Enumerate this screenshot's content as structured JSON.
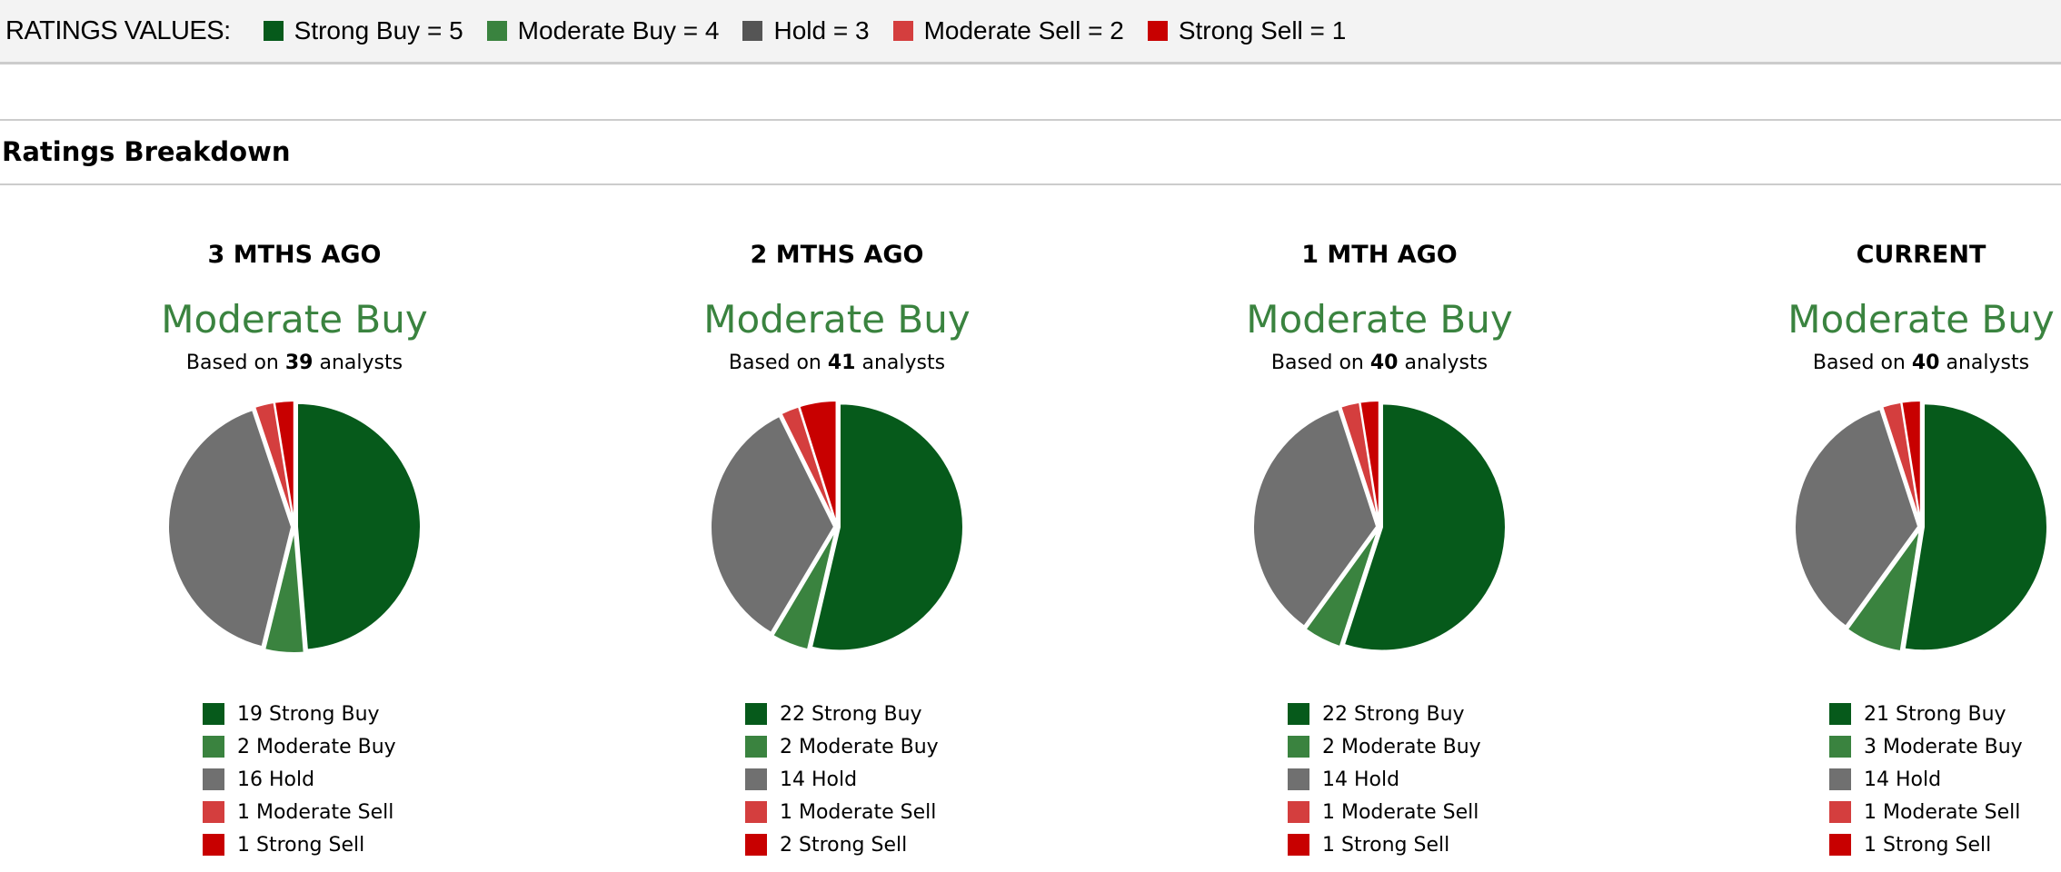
{
  "ratings_values": {
    "label": "RATINGS VALUES:",
    "items": [
      {
        "text": "Strong Buy = 5",
        "color": "#065a1b"
      },
      {
        "text": "Moderate Buy = 4",
        "color": "#3a833f"
      },
      {
        "text": "Hold = 3",
        "color": "#555555"
      },
      {
        "text": "Moderate Sell = 2",
        "color": "#d43e3e"
      },
      {
        "text": "Strong Sell = 1",
        "color": "#c80000"
      }
    ]
  },
  "section_title": "Ratings Breakdown",
  "chart_data": [
    {
      "type": "pie",
      "title": "3 MTHS AGO",
      "consensus": "Moderate Buy",
      "based_prefix": "Based on",
      "analysts": "39",
      "based_suffix": "analysts",
      "categories": [
        "Strong Buy",
        "Moderate Buy",
        "Hold",
        "Moderate Sell",
        "Strong Sell"
      ],
      "values": [
        19,
        2,
        16,
        1,
        1
      ],
      "legend": [
        "19 Strong Buy",
        "2 Moderate Buy",
        "16 Hold",
        "1 Moderate Sell",
        "1 Strong Sell"
      ]
    },
    {
      "type": "pie",
      "title": "2 MTHS AGO",
      "consensus": "Moderate Buy",
      "based_prefix": "Based on",
      "analysts": "41",
      "based_suffix": "analysts",
      "categories": [
        "Strong Buy",
        "Moderate Buy",
        "Hold",
        "Moderate Sell",
        "Strong Sell"
      ],
      "values": [
        22,
        2,
        14,
        1,
        2
      ],
      "legend": [
        "22 Strong Buy",
        "2 Moderate Buy",
        "14 Hold",
        "1 Moderate Sell",
        "2 Strong Sell"
      ]
    },
    {
      "type": "pie",
      "title": "1 MTH AGO",
      "consensus": "Moderate Buy",
      "based_prefix": "Based on",
      "analysts": "40",
      "based_suffix": "analysts",
      "categories": [
        "Strong Buy",
        "Moderate Buy",
        "Hold",
        "Moderate Sell",
        "Strong Sell"
      ],
      "values": [
        22,
        2,
        14,
        1,
        1
      ],
      "legend": [
        "22 Strong Buy",
        "2 Moderate Buy",
        "14 Hold",
        "1 Moderate Sell",
        "1 Strong Sell"
      ]
    },
    {
      "type": "pie",
      "title": "CURRENT",
      "consensus": "Moderate Buy",
      "based_prefix": "Based on",
      "analysts": "40",
      "based_suffix": "analysts",
      "categories": [
        "Strong Buy",
        "Moderate Buy",
        "Hold",
        "Moderate Sell",
        "Strong Sell"
      ],
      "values": [
        21,
        3,
        14,
        1,
        1
      ],
      "legend": [
        "21 Strong Buy",
        "3 Moderate Buy",
        "14 Hold",
        "1 Moderate Sell",
        "1 Strong Sell"
      ]
    }
  ],
  "slice_colors": [
    "#065a1b",
    "#3a833f",
    "#707070",
    "#d43e3e",
    "#c80000"
  ]
}
